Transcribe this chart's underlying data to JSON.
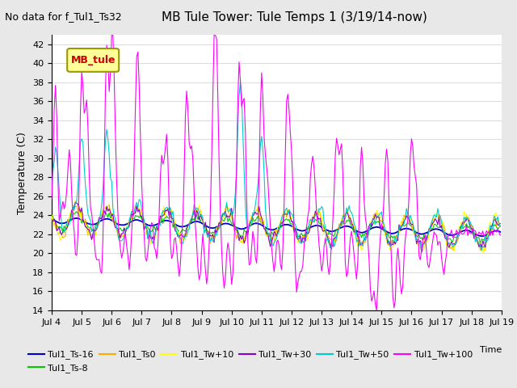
{
  "title": "MB Tule Tower: Tule Temps 1 (3/19/14-now)",
  "no_data_text": "No data for f_Tul1_Ts32",
  "xlabel": "Time",
  "ylabel": "Temperature (C)",
  "ylim": [
    14,
    43
  ],
  "yticks": [
    14,
    16,
    18,
    20,
    22,
    24,
    26,
    28,
    30,
    32,
    34,
    36,
    38,
    40,
    42
  ],
  "bg_color": "#e8e8e8",
  "plot_bg": "#ffffff",
  "grid_color": "#dddddd",
  "legend_label": "MB_tule",
  "legend_bg": "#ffff99",
  "legend_border": "#999900",
  "series_colors": {
    "Tul1_Ts-16": "#0000cc",
    "Tul1_Ts-8": "#00cc00",
    "Tul1_Ts0": "#ffaa00",
    "Tul1_Tw+10": "#ffff00",
    "Tul1_Tw+30": "#8800cc",
    "Tul1_Tw+50": "#00cccc",
    "Tul1_Tw+100": "#ff00ff"
  },
  "n_points": 360,
  "x_tick_labels": [
    "Jul 4",
    "Jul 5",
    "Jul 6",
    "Jul 7",
    "Jul 8",
    "Jul 9",
    "Jul 10",
    "Jul 11",
    "Jul 12",
    "Jul 13",
    "Jul 14",
    "Jul 15",
    "Jul 16",
    "Jul 17",
    "Jul 18",
    "Jul 19"
  ],
  "x_tick_positions": [
    0,
    24,
    48,
    72,
    96,
    120,
    144,
    168,
    192,
    216,
    240,
    264,
    288,
    312,
    336,
    360
  ]
}
